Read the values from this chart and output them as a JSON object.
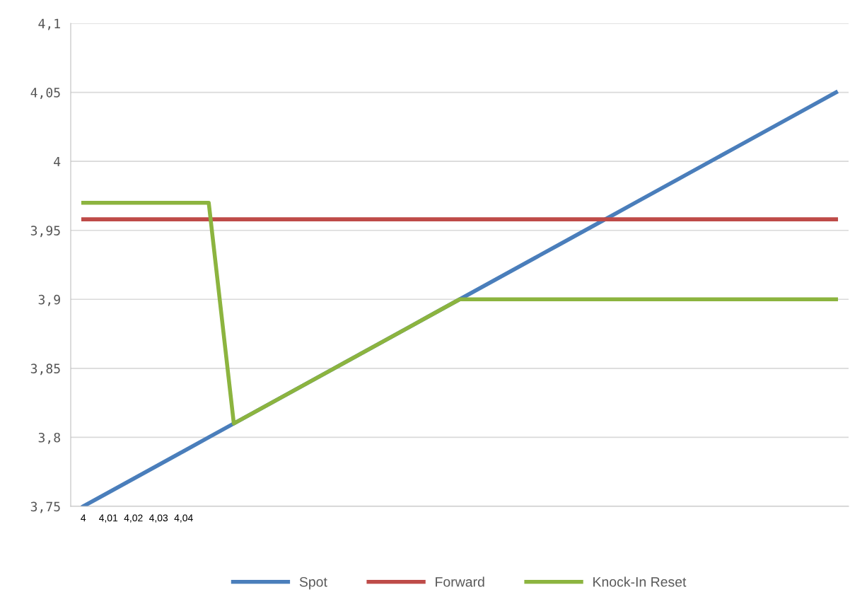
{
  "chart_data": {
    "type": "line",
    "categories": [
      "4",
      "4,01",
      "4,02",
      "4,03",
      "4,04",
      null,
      null,
      null,
      null,
      null,
      null,
      null,
      null,
      null,
      null,
      null,
      null,
      null,
      null,
      null,
      null,
      null,
      null,
      null,
      null,
      null,
      null,
      null,
      null,
      null,
      null
    ],
    "series": [
      {
        "name": "Spot",
        "color": "#4a7ebb",
        "values": [
          3.75,
          3.76,
          3.77,
          3.78,
          3.79,
          3.8,
          3.81,
          3.82,
          3.83,
          3.84,
          3.85,
          3.86,
          3.87,
          3.88,
          3.89,
          3.9,
          3.91,
          3.92,
          3.93,
          3.94,
          3.95,
          3.96,
          3.97,
          3.98,
          3.99,
          4.0,
          4.01,
          4.02,
          4.03,
          4.04,
          4.05
        ]
      },
      {
        "name": "Forward",
        "color": "#be4b48",
        "values": [
          3.958,
          3.958,
          3.958,
          3.958,
          3.958,
          3.958,
          3.958,
          3.958,
          3.958,
          3.958,
          3.958,
          3.958,
          3.958,
          3.958,
          3.958,
          3.958,
          3.958,
          3.958,
          3.958,
          3.958,
          3.958,
          3.958,
          3.958,
          3.958,
          3.958,
          3.958,
          3.958,
          3.958,
          3.958,
          3.958,
          3.958
        ]
      },
      {
        "name": "Knock-In Reset",
        "color": "#8cb43f",
        "values": [
          3.97,
          3.97,
          3.97,
          3.97,
          3.97,
          3.97,
          3.81,
          3.82,
          3.83,
          3.84,
          3.85,
          3.86,
          3.87,
          3.88,
          3.89,
          3.9,
          3.9,
          3.9,
          3.9,
          3.9,
          3.9,
          3.9,
          3.9,
          3.9,
          3.9,
          3.9,
          3.9,
          3.9,
          3.9,
          3.9,
          3.9
        ]
      }
    ],
    "ylim": [
      3.75,
      4.1
    ],
    "yticks": [
      {
        "value": 3.75,
        "label": "3,75"
      },
      {
        "value": 3.8,
        "label": "3,8"
      },
      {
        "value": 3.85,
        "label": "3,85"
      },
      {
        "value": 3.9,
        "label": "3,9"
      },
      {
        "value": 3.95,
        "label": "3,95"
      },
      {
        "value": 4.0,
        "label": "4"
      },
      {
        "value": 4.05,
        "label": "4,05"
      },
      {
        "value": 4.1,
        "label": "4,1"
      }
    ],
    "grid": "y",
    "legend": "bottom",
    "marker": "none",
    "line_style": "solid"
  }
}
